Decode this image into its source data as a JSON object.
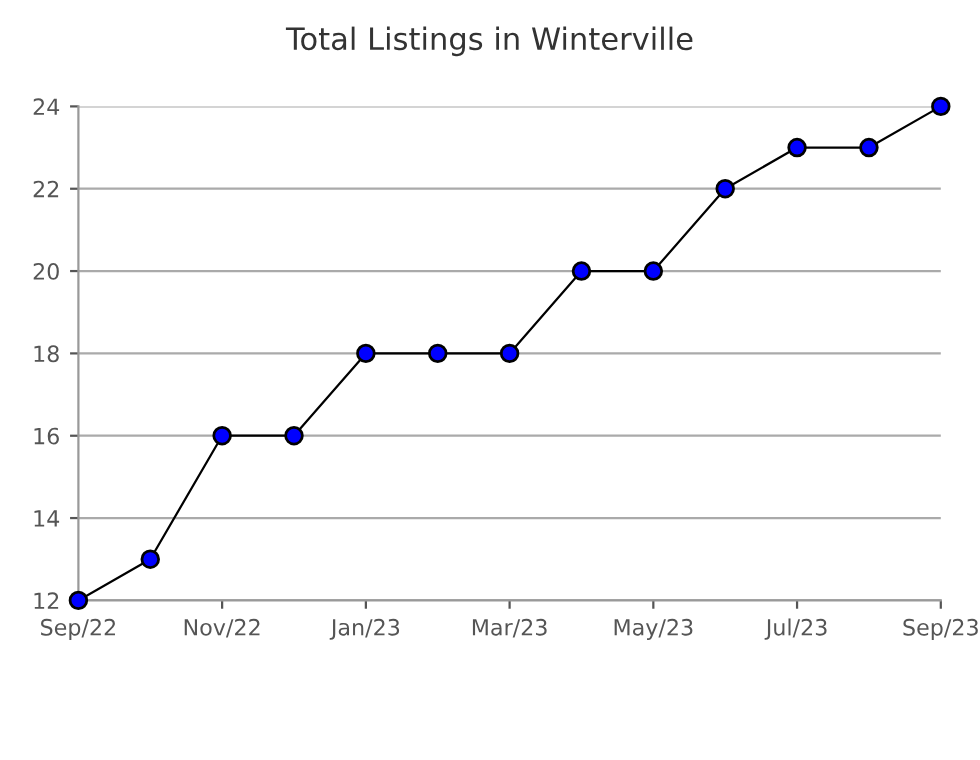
{
  "chart_data": {
    "type": "line",
    "title": "Total Listings in Winterville",
    "categories": [
      "Sep/22",
      null,
      "Nov/22",
      null,
      "Jan/23",
      null,
      "Mar/23",
      null,
      "May/23",
      null,
      "Jul/23",
      null,
      "Sep/23"
    ],
    "series": [
      {
        "color": "#0000ff",
        "values": [
          12,
          13,
          16,
          16,
          18,
          18,
          18,
          20,
          20,
          22,
          23,
          23,
          24
        ]
      }
    ],
    "ylim": [
      12,
      24
    ],
    "yticks": [
      12,
      14,
      16,
      18,
      20,
      22,
      24
    ],
    "grid": "y",
    "marker": "circle",
    "line_style": "solid",
    "legend": false
  }
}
